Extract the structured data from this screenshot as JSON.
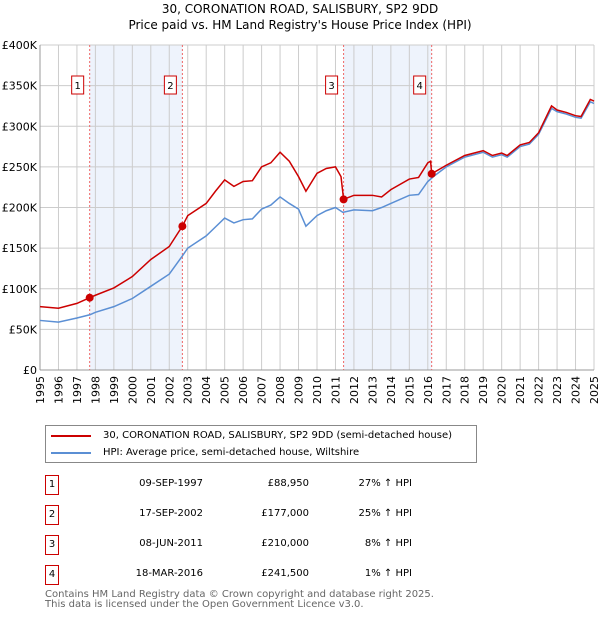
{
  "chart_data": {
    "type": "line",
    "title": "30, CORONATION ROAD, SALISBURY, SP2 9DD",
    "subtitle": "Price paid vs. HM Land Registry's House Price Index (HPI)",
    "xlim": [
      1995,
      2025
    ],
    "ylim": [
      0,
      400000
    ],
    "yticks": [
      0,
      50000,
      100000,
      150000,
      200000,
      250000,
      300000,
      350000,
      400000
    ],
    "ytick_labels": [
      "£0",
      "£50K",
      "£100K",
      "£150K",
      "£200K",
      "£250K",
      "£300K",
      "£350K",
      "£400K"
    ],
    "xticks": [
      1995,
      1996,
      1997,
      1998,
      1999,
      2000,
      2001,
      2002,
      2003,
      2004,
      2005,
      2006,
      2007,
      2008,
      2009,
      2010,
      2011,
      2012,
      2013,
      2014,
      2015,
      2016,
      2017,
      2018,
      2019,
      2020,
      2021,
      2022,
      2023,
      2024,
      2025
    ],
    "grid": true,
    "colors": {
      "property": "#cc0000",
      "hpi": "#5b8fd4",
      "shade": "#eef3fc"
    },
    "series": [
      {
        "name": "30, CORONATION ROAD, SALISBURY, SP2 9DD (semi-detached house)",
        "points": [
          [
            1995,
            78000
          ],
          [
            1996,
            76000
          ],
          [
            1997,
            82000
          ],
          [
            1997.69,
            88950
          ],
          [
            1998,
            92000
          ],
          [
            1999,
            101000
          ],
          [
            2000,
            115000
          ],
          [
            2001,
            136000
          ],
          [
            2002,
            152000
          ],
          [
            2002.71,
            177000
          ],
          [
            2003,
            190000
          ],
          [
            2004,
            205000
          ],
          [
            2004.5,
            220000
          ],
          [
            2005,
            234000
          ],
          [
            2005.5,
            226000
          ],
          [
            2006,
            232000
          ],
          [
            2006.5,
            233000
          ],
          [
            2007,
            250000
          ],
          [
            2007.5,
            255000
          ],
          [
            2008,
            268000
          ],
          [
            2008.5,
            257000
          ],
          [
            2009,
            238000
          ],
          [
            2009.4,
            220000
          ],
          [
            2010,
            242000
          ],
          [
            2010.5,
            248000
          ],
          [
            2011,
            250000
          ],
          [
            2011.3,
            238000
          ],
          [
            2011.44,
            210000
          ],
          [
            2012,
            215000
          ],
          [
            2013,
            215000
          ],
          [
            2013.5,
            213000
          ],
          [
            2014,
            222000
          ],
          [
            2015,
            235000
          ],
          [
            2015.5,
            237000
          ],
          [
            2016,
            255000
          ],
          [
            2016.15,
            257000
          ],
          [
            2016.21,
            241500
          ],
          [
            2017,
            252000
          ],
          [
            2018,
            264000
          ],
          [
            2019,
            270000
          ],
          [
            2019.5,
            264000
          ],
          [
            2020,
            267000
          ],
          [
            2020.3,
            264000
          ],
          [
            2021,
            277000
          ],
          [
            2021.5,
            280000
          ],
          [
            2022,
            292000
          ],
          [
            2022.7,
            325000
          ],
          [
            2023,
            320000
          ],
          [
            2023.5,
            317000
          ],
          [
            2024,
            313000
          ],
          [
            2024.3,
            312000
          ],
          [
            2024.8,
            333000
          ],
          [
            2025,
            331000
          ]
        ]
      },
      {
        "name": "HPI: Average price, semi-detached house, Wiltshire",
        "points": [
          [
            1995,
            61000
          ],
          [
            1996,
            59000
          ],
          [
            1997,
            64000
          ],
          [
            1997.7,
            68000
          ],
          [
            1998,
            71000
          ],
          [
            1999,
            78000
          ],
          [
            2000,
            88000
          ],
          [
            2001,
            103000
          ],
          [
            2002,
            118000
          ],
          [
            2002.7,
            140000
          ],
          [
            2003,
            150000
          ],
          [
            2004,
            165000
          ],
          [
            2004.5,
            176000
          ],
          [
            2005,
            187000
          ],
          [
            2005.5,
            181000
          ],
          [
            2006,
            185000
          ],
          [
            2006.5,
            186000
          ],
          [
            2007,
            198000
          ],
          [
            2007.5,
            203000
          ],
          [
            2008,
            213000
          ],
          [
            2008.5,
            205000
          ],
          [
            2009,
            198000
          ],
          [
            2009.4,
            177000
          ],
          [
            2010,
            190000
          ],
          [
            2010.5,
            196000
          ],
          [
            2011,
            200000
          ],
          [
            2011.4,
            194000
          ],
          [
            2012,
            197000
          ],
          [
            2013,
            196000
          ],
          [
            2013.5,
            200000
          ],
          [
            2014,
            205000
          ],
          [
            2015,
            215000
          ],
          [
            2015.5,
            216000
          ],
          [
            2016,
            232000
          ],
          [
            2016.3,
            238000
          ],
          [
            2017,
            250000
          ],
          [
            2018,
            262000
          ],
          [
            2019,
            268000
          ],
          [
            2019.5,
            262000
          ],
          [
            2020,
            265000
          ],
          [
            2020.3,
            262000
          ],
          [
            2021,
            275000
          ],
          [
            2021.5,
            278000
          ],
          [
            2022,
            290000
          ],
          [
            2022.7,
            322000
          ],
          [
            2023,
            318000
          ],
          [
            2023.5,
            315000
          ],
          [
            2024,
            311000
          ],
          [
            2024.3,
            310000
          ],
          [
            2024.8,
            330000
          ],
          [
            2025,
            328000
          ]
        ]
      }
    ],
    "sales": [
      {
        "n": "1",
        "x": 1997.69,
        "y": 88950,
        "date": "09-SEP-1997",
        "price": "£88,950",
        "hpi": "27% ↑ HPI"
      },
      {
        "n": "2",
        "x": 2002.71,
        "y": 177000,
        "date": "17-SEP-2002",
        "price": "£177,000",
        "hpi": "25% ↑ HPI"
      },
      {
        "n": "3",
        "x": 2011.44,
        "y": 210000,
        "date": "08-JUN-2011",
        "price": "£210,000",
        "hpi": "8% ↑ HPI"
      },
      {
        "n": "4",
        "x": 2016.21,
        "y": 241500,
        "date": "18-MAR-2016",
        "price": "£241,500",
        "hpi": "1% ↑ HPI"
      }
    ]
  },
  "footer": {
    "line1": "Contains HM Land Registry data © Crown copyright and database right 2025.",
    "line2": "This data is licensed under the Open Government Licence v3.0."
  }
}
